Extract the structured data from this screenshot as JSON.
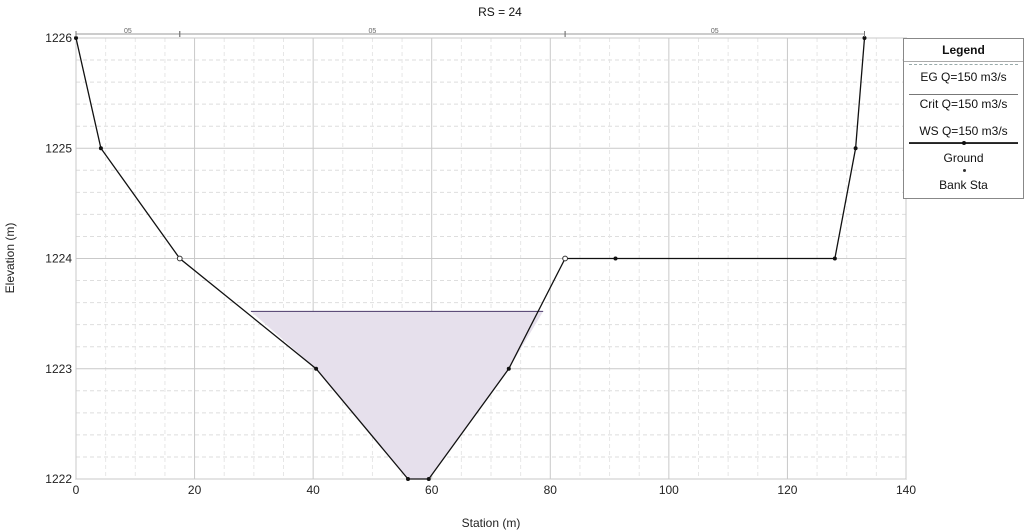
{
  "chart_data": {
    "type": "line",
    "title": "RS = 24",
    "xlabel": "Station (m)",
    "ylabel": "Elevation (m)",
    "xlim": [
      0,
      140
    ],
    "ylim": [
      1222,
      1226
    ],
    "x_ticks": [
      0,
      20,
      40,
      60,
      80,
      100,
      120,
      140
    ],
    "y_ticks": [
      1222,
      1223,
      1224,
      1225,
      1226
    ],
    "grid": true,
    "legend_position": "right",
    "ground": {
      "name": "Ground",
      "x": [
        0,
        4.2,
        17.5,
        40.5,
        56,
        59.5,
        73,
        82.5,
        91,
        128,
        131.5,
        133
      ],
      "y": [
        1226,
        1225,
        1224,
        1223,
        1222,
        1222,
        1223,
        1224,
        1224,
        1224,
        1225,
        1226
      ]
    },
    "water_surface": {
      "name": "WS Q=150 m3/s",
      "elevation": 1223.52,
      "x_left": 29.5,
      "x_right": 78.8,
      "fill": "#e6e0ec"
    },
    "bank_stations": [
      17.5,
      82.5
    ],
    "n_values": [
      {
        "label": "05",
        "x_start": 0,
        "x_end": 17.5
      },
      {
        "label": "05",
        "x_start": 17.5,
        "x_end": 82.5
      },
      {
        "label": "05",
        "x_start": 82.5,
        "x_end": 133
      }
    ]
  },
  "legend": {
    "title": "Legend",
    "items": [
      {
        "label": "EG Q=150 m3/s",
        "swatch": "sw-eg"
      },
      {
        "label": "Crit Q=150 m3/s",
        "swatch": "sw-crit"
      },
      {
        "label": "WS Q=150 m3/s",
        "swatch": "sw-ws"
      },
      {
        "label": "Ground",
        "swatch": "sw-ground"
      },
      {
        "label": "Bank Sta",
        "swatch": "sw-bank"
      }
    ]
  },
  "colors": {
    "grid": "#c9c9c9",
    "ground_line": "#111111",
    "water_fill": "#e6e0ec",
    "water_edge": "#4a3a6a"
  }
}
